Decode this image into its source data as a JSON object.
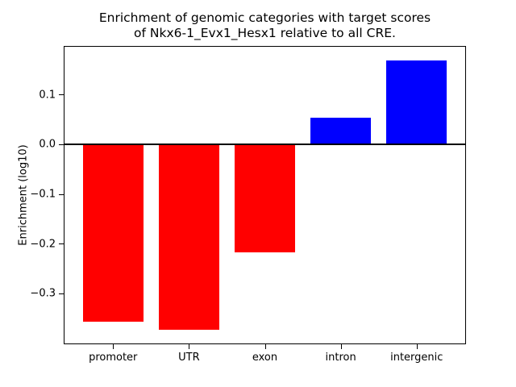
{
  "chart_data": {
    "type": "bar",
    "title": "Enrichment of genomic categories with target scores\nof Nkx6-1_Evx1_Hesx1 relative to all CRE.",
    "ylabel": "Enrichment (log10)",
    "xlabel": "",
    "categories": [
      "promoter",
      "UTR",
      "exon",
      "intron",
      "intergenic"
    ],
    "values": [
      -0.356,
      -0.373,
      -0.217,
      0.055,
      0.17
    ],
    "bar_colors": [
      "#ff0000",
      "#ff0000",
      "#ff0000",
      "#0000ff",
      "#0000ff"
    ],
    "negative_color": "#ff0000",
    "positive_color": "#0000ff",
    "ylim": [
      -0.4,
      0.197
    ],
    "yticks": [
      0.1,
      0.0,
      -0.1,
      -0.2,
      -0.3
    ],
    "ytick_labels": [
      "0.1",
      "0.0",
      "−0.1",
      "−0.2",
      "−0.3"
    ],
    "zero_line": true,
    "grid": false,
    "legend_position": "none",
    "background_color": "#ffffff",
    "axis_color": "#000000"
  }
}
